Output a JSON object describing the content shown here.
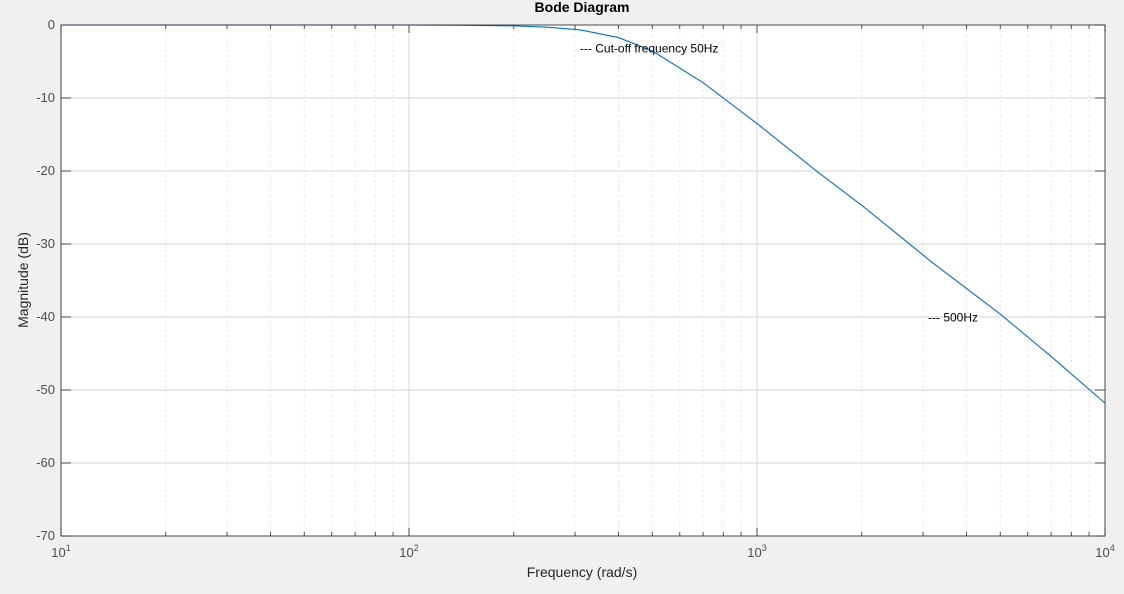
{
  "chart_data": {
    "type": "line",
    "title": "Bode Diagram",
    "xlabel": "Frequency  (rad/s)",
    "ylabel": "Magnitude (dB)",
    "xscale": "log",
    "xlim": [
      10,
      10000
    ],
    "ylim": [
      -70,
      0
    ],
    "x_ticks": [
      {
        "base": "10",
        "exp": "1",
        "value": 10
      },
      {
        "base": "10",
        "exp": "2",
        "value": 100
      },
      {
        "base": "10",
        "exp": "3",
        "value": 1000
      },
      {
        "base": "10",
        "exp": "4",
        "value": 10000
      }
    ],
    "y_ticks": [
      0,
      -10,
      -20,
      -30,
      -40,
      -50,
      -60,
      -70
    ],
    "grid": true,
    "series": [
      {
        "color": "#0072bd",
        "x": [
          10,
          20,
          30,
          50,
          70,
          100,
          150,
          200,
          250,
          300,
          314,
          400,
          500,
          700,
          1000,
          1500,
          2000,
          3000,
          3142,
          5000,
          7000,
          10000
        ],
        "y": [
          0,
          0,
          0,
          0,
          0,
          0,
          -0.04,
          -0.12,
          -0.3,
          -0.61,
          -0.71,
          -1.72,
          -3.55,
          -7.9,
          -13.5,
          -20.2,
          -24.7,
          -31.5,
          -32.3,
          -39.6,
          -45.4,
          -51.8
        ]
      }
    ],
    "annotations": [
      {
        "text": "--- Cut-off frequency 50Hz",
        "x": 314,
        "y": -3.2
      },
      {
        "text": "--- 500Hz",
        "x": 3142,
        "y": -40.1
      }
    ]
  }
}
